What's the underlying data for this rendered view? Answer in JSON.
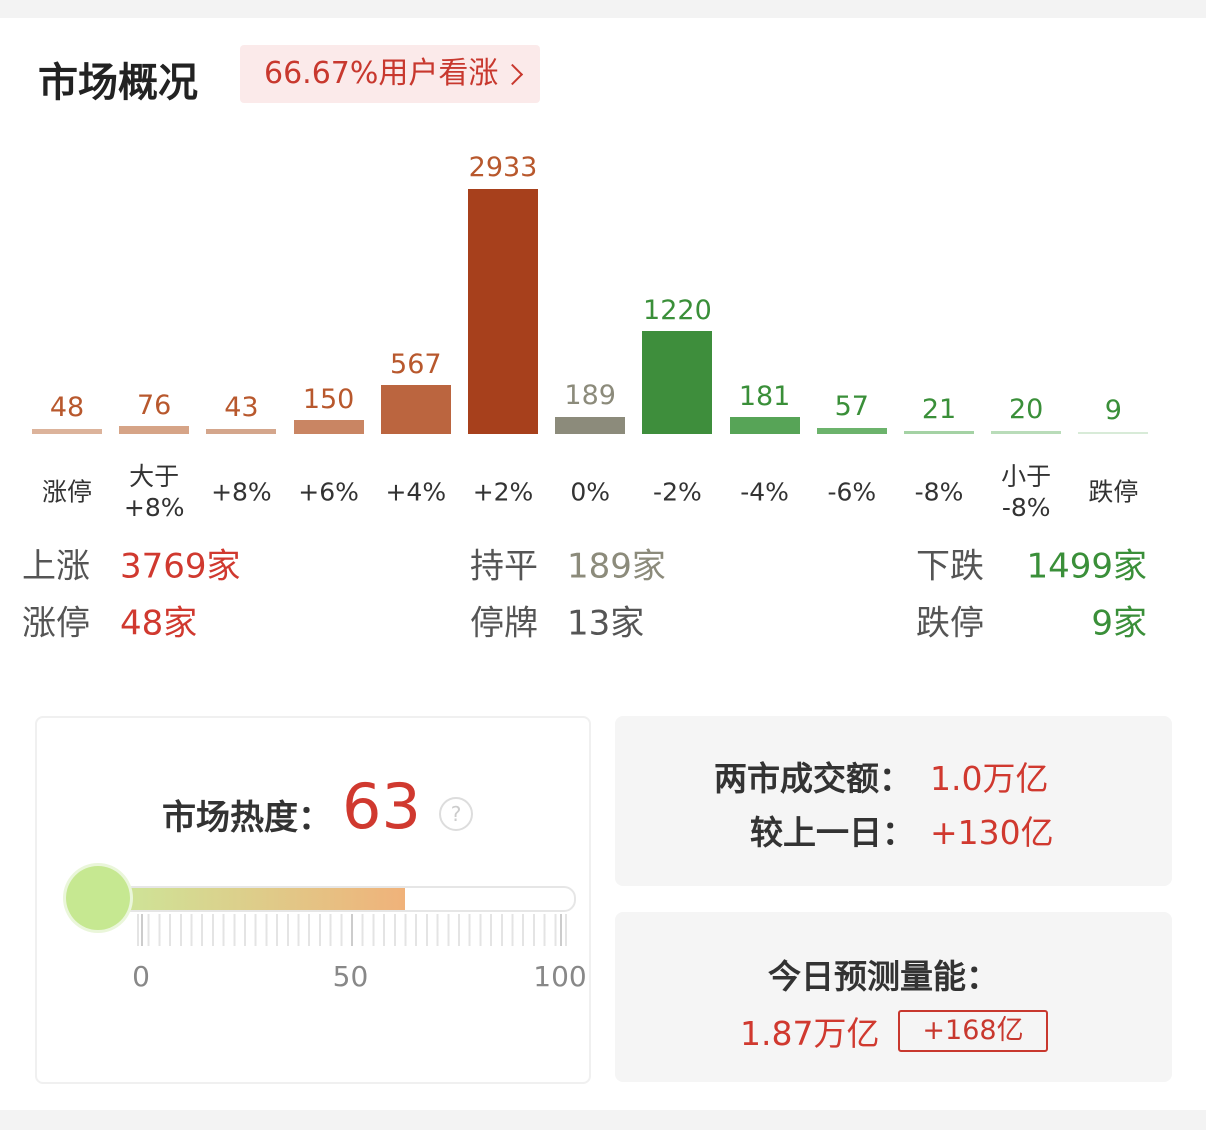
{
  "header": {
    "title": "市场概况",
    "badge": "66.67%用户看涨"
  },
  "chart_data": {
    "type": "bar",
    "categories": [
      "涨停",
      "大于\n+8%",
      "+8%",
      "+6%",
      "+4%",
      "+2%",
      "0%",
      "-2%",
      "-4%",
      "-6%",
      "-8%",
      "小于\n-8%",
      "跌停"
    ],
    "values": [
      48,
      76,
      43,
      150,
      567,
      2933,
      189,
      1220,
      181,
      57,
      21,
      20,
      9
    ],
    "colors": [
      "#dcb39b",
      "#d6a487",
      "#d4a68c",
      "#c98563",
      "#bb653f",
      "#a7401c",
      "#8c8b7b",
      "#3e8e3c",
      "#57a457",
      "#6cb36c",
      "#a4d2a4",
      "#b9dcb9",
      "#d8ebd8"
    ],
    "label_colors": [
      "#b8582d",
      "#b8582d",
      "#b8582d",
      "#b8582d",
      "#b8582d",
      "#b8582d",
      "#8c8b7b",
      "#3a8f39",
      "#3a8f39",
      "#3a8f39",
      "#3a8f39",
      "#3a8f39",
      "#3a8f39"
    ]
  },
  "summary": {
    "rows": [
      [
        {
          "label": "上涨",
          "value": "3769家",
          "color": "#d0392f"
        },
        {
          "label": "持平",
          "value": "189家",
          "color": "#8c8b7b"
        },
        {
          "label": "下跌",
          "value": "1499家",
          "color": "#3a8f39"
        }
      ],
      [
        {
          "label": "涨停",
          "value": "48家",
          "color": "#d0392f"
        },
        {
          "label": "停牌",
          "value": "13家",
          "color": "#555555"
        },
        {
          "label": "跌停",
          "value": "9家",
          "color": "#3a8f39"
        }
      ]
    ]
  },
  "heat": {
    "label": "市场热度：",
    "value": 63,
    "help": "?",
    "lim": [
      0,
      100
    ],
    "ticks": [
      0,
      50,
      100
    ]
  },
  "turnover": {
    "label": "两市成交额：",
    "value": "1.0万亿",
    "change_label": "较上一日：",
    "change": "+130亿"
  },
  "forecast": {
    "label": "今日预测量能：",
    "value": "1.87万亿",
    "change": "+168亿"
  }
}
